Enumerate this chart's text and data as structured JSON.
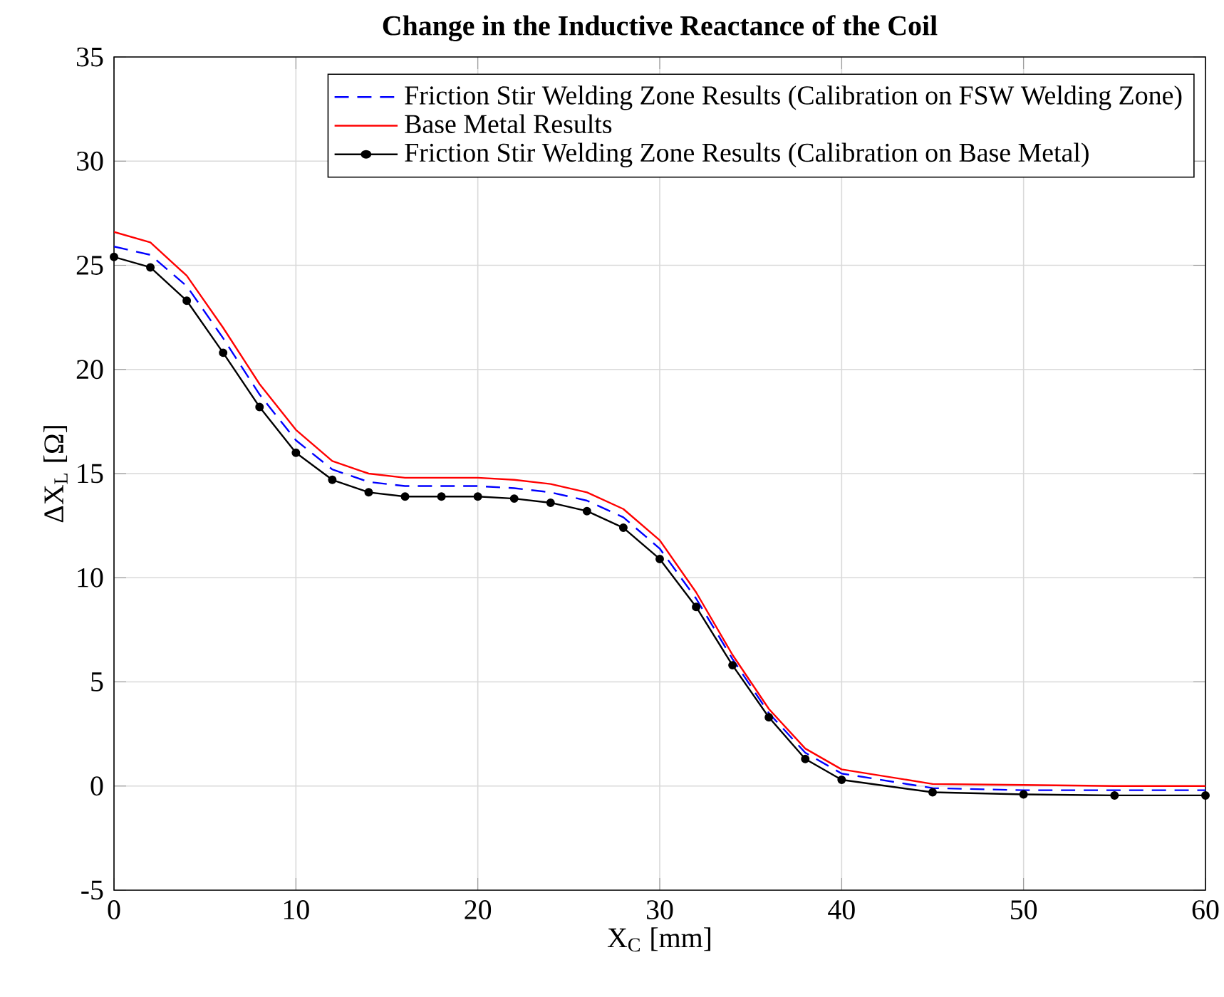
{
  "chart_data": {
    "type": "line",
    "title": "Change in the Inductive Reactance of the Coil",
    "xlabel": "X$_{C}$ [mm]",
    "ylabel": "ΔX$_{L}$ [Ω]",
    "x": [
      0,
      2,
      4,
      6,
      8,
      10,
      12,
      14,
      16,
      18,
      20,
      22,
      24,
      26,
      28,
      30,
      32,
      34,
      36,
      38,
      40,
      45,
      50,
      55,
      60
    ],
    "series": [
      {
        "name": "Friction Stir Welding Zone Results (Calibration on FSW Welding Zone)",
        "color": "#0000ff",
        "line_style": "dashed",
        "marker": "none",
        "values": [
          25.9,
          25.5,
          24.0,
          21.5,
          18.8,
          16.6,
          15.2,
          14.6,
          14.4,
          14.4,
          14.4,
          14.3,
          14.1,
          13.7,
          12.9,
          11.4,
          9.0,
          6.1,
          3.5,
          1.6,
          0.6,
          -0.1,
          -0.2,
          -0.2,
          -0.2
        ]
      },
      {
        "name": "Base Metal Results",
        "color": "#ff0000",
        "line_style": "solid",
        "marker": "none",
        "values": [
          26.6,
          26.1,
          24.5,
          22.0,
          19.3,
          17.1,
          15.6,
          15.0,
          14.8,
          14.8,
          14.8,
          14.7,
          14.5,
          14.1,
          13.3,
          11.8,
          9.3,
          6.3,
          3.7,
          1.8,
          0.8,
          0.1,
          0.05,
          0.0,
          0.0
        ]
      },
      {
        "name": "Friction Stir Welding Zone Results (Calibration on Base Metal)",
        "color": "#000000",
        "line_style": "solid",
        "marker": "circle",
        "values": [
          25.4,
          24.9,
          23.3,
          20.8,
          18.2,
          16.0,
          14.7,
          14.1,
          13.9,
          13.9,
          13.9,
          13.8,
          13.6,
          13.2,
          12.4,
          10.9,
          8.6,
          5.8,
          3.3,
          1.3,
          0.3,
          -0.3,
          -0.4,
          -0.45,
          -0.45
        ]
      }
    ],
    "xlim": [
      0,
      60
    ],
    "xticks": [
      0,
      10,
      20,
      30,
      40,
      50,
      60
    ],
    "ylim": [
      -5,
      35
    ],
    "yticks": [
      -5,
      0,
      5,
      10,
      15,
      20,
      25,
      30,
      35
    ],
    "grid": true,
    "legend": "top right"
  }
}
